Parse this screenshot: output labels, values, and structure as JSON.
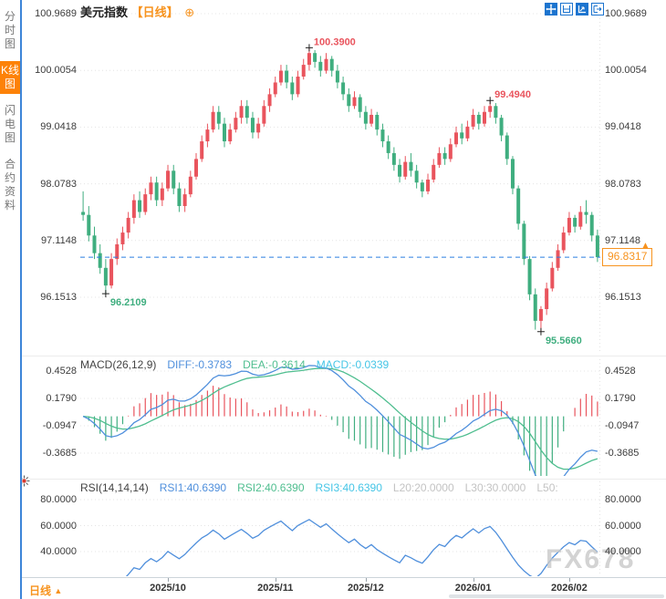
{
  "header": {
    "symbol": "美元指数",
    "period": "【日线】",
    "add_icon": "⊕"
  },
  "sidebar": {
    "items": [
      {
        "label": "分时图",
        "active": false
      },
      {
        "label": "K线图",
        "active": true
      },
      {
        "label": "闪电图",
        "active": false
      },
      {
        "label": "合约资料",
        "active": false
      }
    ]
  },
  "toolbar": {
    "icons": [
      "crosshair",
      "measure-range",
      "auto-scale",
      "exit-chart"
    ]
  },
  "price_axis": {
    "labels": [
      "100.9689",
      "100.0054",
      "99.0418",
      "98.0783",
      "97.1148",
      "96.1513"
    ]
  },
  "macd_axis": [
    "0.4528",
    "0.1790",
    "-0.0947",
    "-0.3685"
  ],
  "rsi_axis": [
    "80.0000",
    "60.0000",
    "40.0000"
  ],
  "macd": {
    "title": "MACD(26,12,9)",
    "diff": "DIFF:-0.3783",
    "dea": "DEA:-0.3614",
    "macd": "MACD:-0.0339"
  },
  "rsi": {
    "title": "RSI(14,14,14)",
    "r1": "RSI1:40.6390",
    "r2": "RSI2:40.6390",
    "r3": "RSI3:40.6390",
    "l20": "L20:20.0000",
    "l30": "L30:30.0000",
    "l50": "L50:"
  },
  "price_tag": {
    "value": "96.8317",
    "arrow": "▲"
  },
  "bottom": {
    "period": "日线",
    "arrow": "▲"
  },
  "watermark": "FX678",
  "chart_data": {
    "type": "candlestick",
    "title": "美元指数 日线 (US Dollar Index, daily)",
    "price_axis_values": [
      100.9689,
      100.0054,
      99.0418,
      98.0783,
      97.1148,
      96.1513
    ],
    "macd_axis_values": [
      0.4528,
      0.179,
      -0.0947,
      -0.3685
    ],
    "rsi_axis_values": [
      80,
      60,
      40
    ],
    "month_ticks": [
      {
        "i": 15,
        "label": "2025/10"
      },
      {
        "i": 34,
        "label": "2025/11"
      },
      {
        "i": 50,
        "label": "2025/12"
      },
      {
        "i": 69,
        "label": "2026/01"
      },
      {
        "i": 86,
        "label": "2026/02"
      }
    ],
    "last_price": 96.8317,
    "annotations": [
      {
        "i": 4,
        "price": 96.2109,
        "label": "96.2109",
        "type": "low"
      },
      {
        "i": 40,
        "price": 100.39,
        "label": "100.3900",
        "type": "high"
      },
      {
        "i": 72,
        "price": 99.494,
        "label": "99.4940",
        "type": "high"
      },
      {
        "i": 81,
        "price": 95.566,
        "label": "95.5660",
        "type": "low"
      }
    ],
    "indicators": {
      "macd": {
        "fast": 12,
        "slow": 26,
        "signal": 9,
        "diff": -0.3783,
        "dea": -0.3614,
        "macd": -0.0339
      },
      "rsi": {
        "periods": [
          14,
          14,
          14
        ],
        "rsi1": 40.639,
        "rsi2": 40.639,
        "rsi3": 40.639,
        "l20": 20.0,
        "l30": 30.0
      }
    },
    "colors": {
      "up": "#e9545d",
      "down": "#3fae7f",
      "diff": "#4f8fdc",
      "dea": "#4fbe8f",
      "macd_label": "#45c5e6",
      "accent_orange": "#f7931e",
      "dashed_line": "#2a7de1"
    },
    "candles": [
      [
        97.6,
        97.95,
        97.45,
        97.55
      ],
      [
        97.55,
        97.7,
        97.1,
        97.2
      ],
      [
        97.2,
        97.35,
        96.8,
        96.9
      ],
      [
        96.9,
        97.05,
        96.55,
        96.65
      ],
      [
        96.65,
        96.8,
        96.2109,
        96.35
      ],
      [
        96.35,
        96.9,
        96.3,
        96.8
      ],
      [
        96.8,
        97.15,
        96.7,
        97.05
      ],
      [
        97.05,
        97.35,
        96.95,
        97.25
      ],
      [
        97.25,
        97.6,
        97.15,
        97.5
      ],
      [
        97.5,
        97.9,
        97.4,
        97.8
      ],
      [
        97.8,
        97.95,
        97.5,
        97.6
      ],
      [
        97.6,
        98.0,
        97.55,
        97.9
      ],
      [
        97.9,
        98.2,
        97.8,
        98.1
      ],
      [
        98.1,
        98.2,
        97.7,
        97.8
      ],
      [
        97.8,
        98.1,
        97.7,
        98.0
      ],
      [
        98.0,
        98.4,
        97.95,
        98.3
      ],
      [
        98.3,
        98.4,
        97.9,
        98.0
      ],
      [
        98.0,
        98.1,
        97.6,
        97.7
      ],
      [
        97.7,
        98.0,
        97.6,
        97.9
      ],
      [
        97.9,
        98.3,
        97.85,
        98.2
      ],
      [
        98.2,
        98.6,
        98.15,
        98.5
      ],
      [
        98.5,
        98.9,
        98.45,
        98.8
      ],
      [
        98.8,
        99.1,
        98.7,
        99.0
      ],
      [
        99.0,
        99.4,
        98.95,
        99.3
      ],
      [
        99.3,
        99.4,
        99.0,
        99.1
      ],
      [
        99.1,
        99.2,
        98.7,
        98.8
      ],
      [
        98.8,
        99.1,
        98.75,
        99.0
      ],
      [
        99.0,
        99.3,
        98.95,
        99.2
      ],
      [
        99.2,
        99.5,
        99.1,
        99.4
      ],
      [
        99.4,
        99.5,
        99.1,
        99.2
      ],
      [
        99.2,
        99.3,
        98.85,
        98.95
      ],
      [
        98.95,
        99.2,
        98.85,
        99.1
      ],
      [
        99.1,
        99.5,
        99.05,
        99.4
      ],
      [
        99.4,
        99.7,
        99.3,
        99.6
      ],
      [
        99.6,
        99.9,
        99.55,
        99.8
      ],
      [
        99.8,
        100.1,
        99.75,
        100.0
      ],
      [
        100.0,
        100.1,
        99.7,
        99.8
      ],
      [
        99.8,
        99.9,
        99.5,
        99.6
      ],
      [
        99.6,
        100.0,
        99.55,
        99.9
      ],
      [
        99.9,
        100.2,
        99.85,
        100.1
      ],
      [
        100.1,
        100.39,
        100.0,
        100.3
      ],
      [
        100.3,
        100.35,
        100.05,
        100.15
      ],
      [
        100.15,
        100.25,
        99.9,
        100.0
      ],
      [
        100.0,
        100.3,
        99.95,
        100.2
      ],
      [
        100.2,
        100.25,
        99.9,
        100.0
      ],
      [
        100.0,
        100.1,
        99.7,
        99.8
      ],
      [
        99.8,
        99.9,
        99.5,
        99.6
      ],
      [
        99.6,
        99.7,
        99.3,
        99.4
      ],
      [
        99.4,
        99.65,
        99.35,
        99.55
      ],
      [
        99.55,
        99.6,
        99.2,
        99.3
      ],
      [
        99.3,
        99.4,
        99.0,
        99.1
      ],
      [
        99.1,
        99.35,
        99.05,
        99.25
      ],
      [
        99.25,
        99.3,
        98.9,
        99.0
      ],
      [
        99.0,
        99.1,
        98.7,
        98.8
      ],
      [
        98.8,
        98.9,
        98.5,
        98.6
      ],
      [
        98.6,
        98.7,
        98.3,
        98.4
      ],
      [
        98.4,
        98.5,
        98.1,
        98.2
      ],
      [
        98.2,
        98.55,
        98.15,
        98.45
      ],
      [
        98.45,
        98.6,
        98.2,
        98.3
      ],
      [
        98.3,
        98.4,
        98.0,
        98.1
      ],
      [
        98.1,
        98.15,
        97.85,
        97.95
      ],
      [
        97.95,
        98.25,
        97.9,
        98.15
      ],
      [
        98.15,
        98.5,
        98.1,
        98.4
      ],
      [
        98.4,
        98.7,
        98.35,
        98.6
      ],
      [
        98.6,
        98.7,
        98.4,
        98.5
      ],
      [
        98.5,
        98.85,
        98.45,
        98.75
      ],
      [
        98.75,
        99.05,
        98.7,
        98.95
      ],
      [
        98.95,
        99.1,
        98.75,
        98.85
      ],
      [
        98.85,
        99.15,
        98.8,
        99.05
      ],
      [
        99.05,
        99.35,
        99.0,
        99.25
      ],
      [
        99.25,
        99.3,
        99.0,
        99.1
      ],
      [
        99.1,
        99.4,
        99.05,
        99.3
      ],
      [
        99.3,
        99.494,
        99.2,
        99.4
      ],
      [
        99.4,
        99.45,
        99.1,
        99.2
      ],
      [
        99.2,
        99.25,
        98.8,
        98.9
      ],
      [
        98.9,
        98.95,
        98.4,
        98.5
      ],
      [
        98.5,
        98.55,
        97.9,
        98.0
      ],
      [
        98.0,
        98.05,
        97.3,
        97.4
      ],
      [
        97.4,
        97.45,
        96.7,
        96.8
      ],
      [
        96.8,
        96.85,
        96.1,
        96.2
      ],
      [
        96.2,
        96.3,
        95.6,
        95.75
      ],
      [
        95.75,
        96.0,
        95.566,
        95.95
      ],
      [
        95.95,
        96.4,
        95.85,
        96.3
      ],
      [
        96.3,
        96.75,
        96.25,
        96.65
      ],
      [
        96.65,
        97.05,
        96.6,
        96.95
      ],
      [
        96.95,
        97.35,
        96.9,
        97.25
      ],
      [
        97.25,
        97.6,
        97.2,
        97.5
      ],
      [
        97.5,
        97.55,
        97.25,
        97.35
      ],
      [
        97.35,
        97.7,
        97.3,
        97.6
      ],
      [
        97.6,
        97.8,
        97.4,
        97.55
      ],
      [
        97.55,
        97.6,
        97.1,
        97.2
      ],
      [
        97.2,
        97.3,
        96.75,
        96.8317
      ]
    ]
  }
}
